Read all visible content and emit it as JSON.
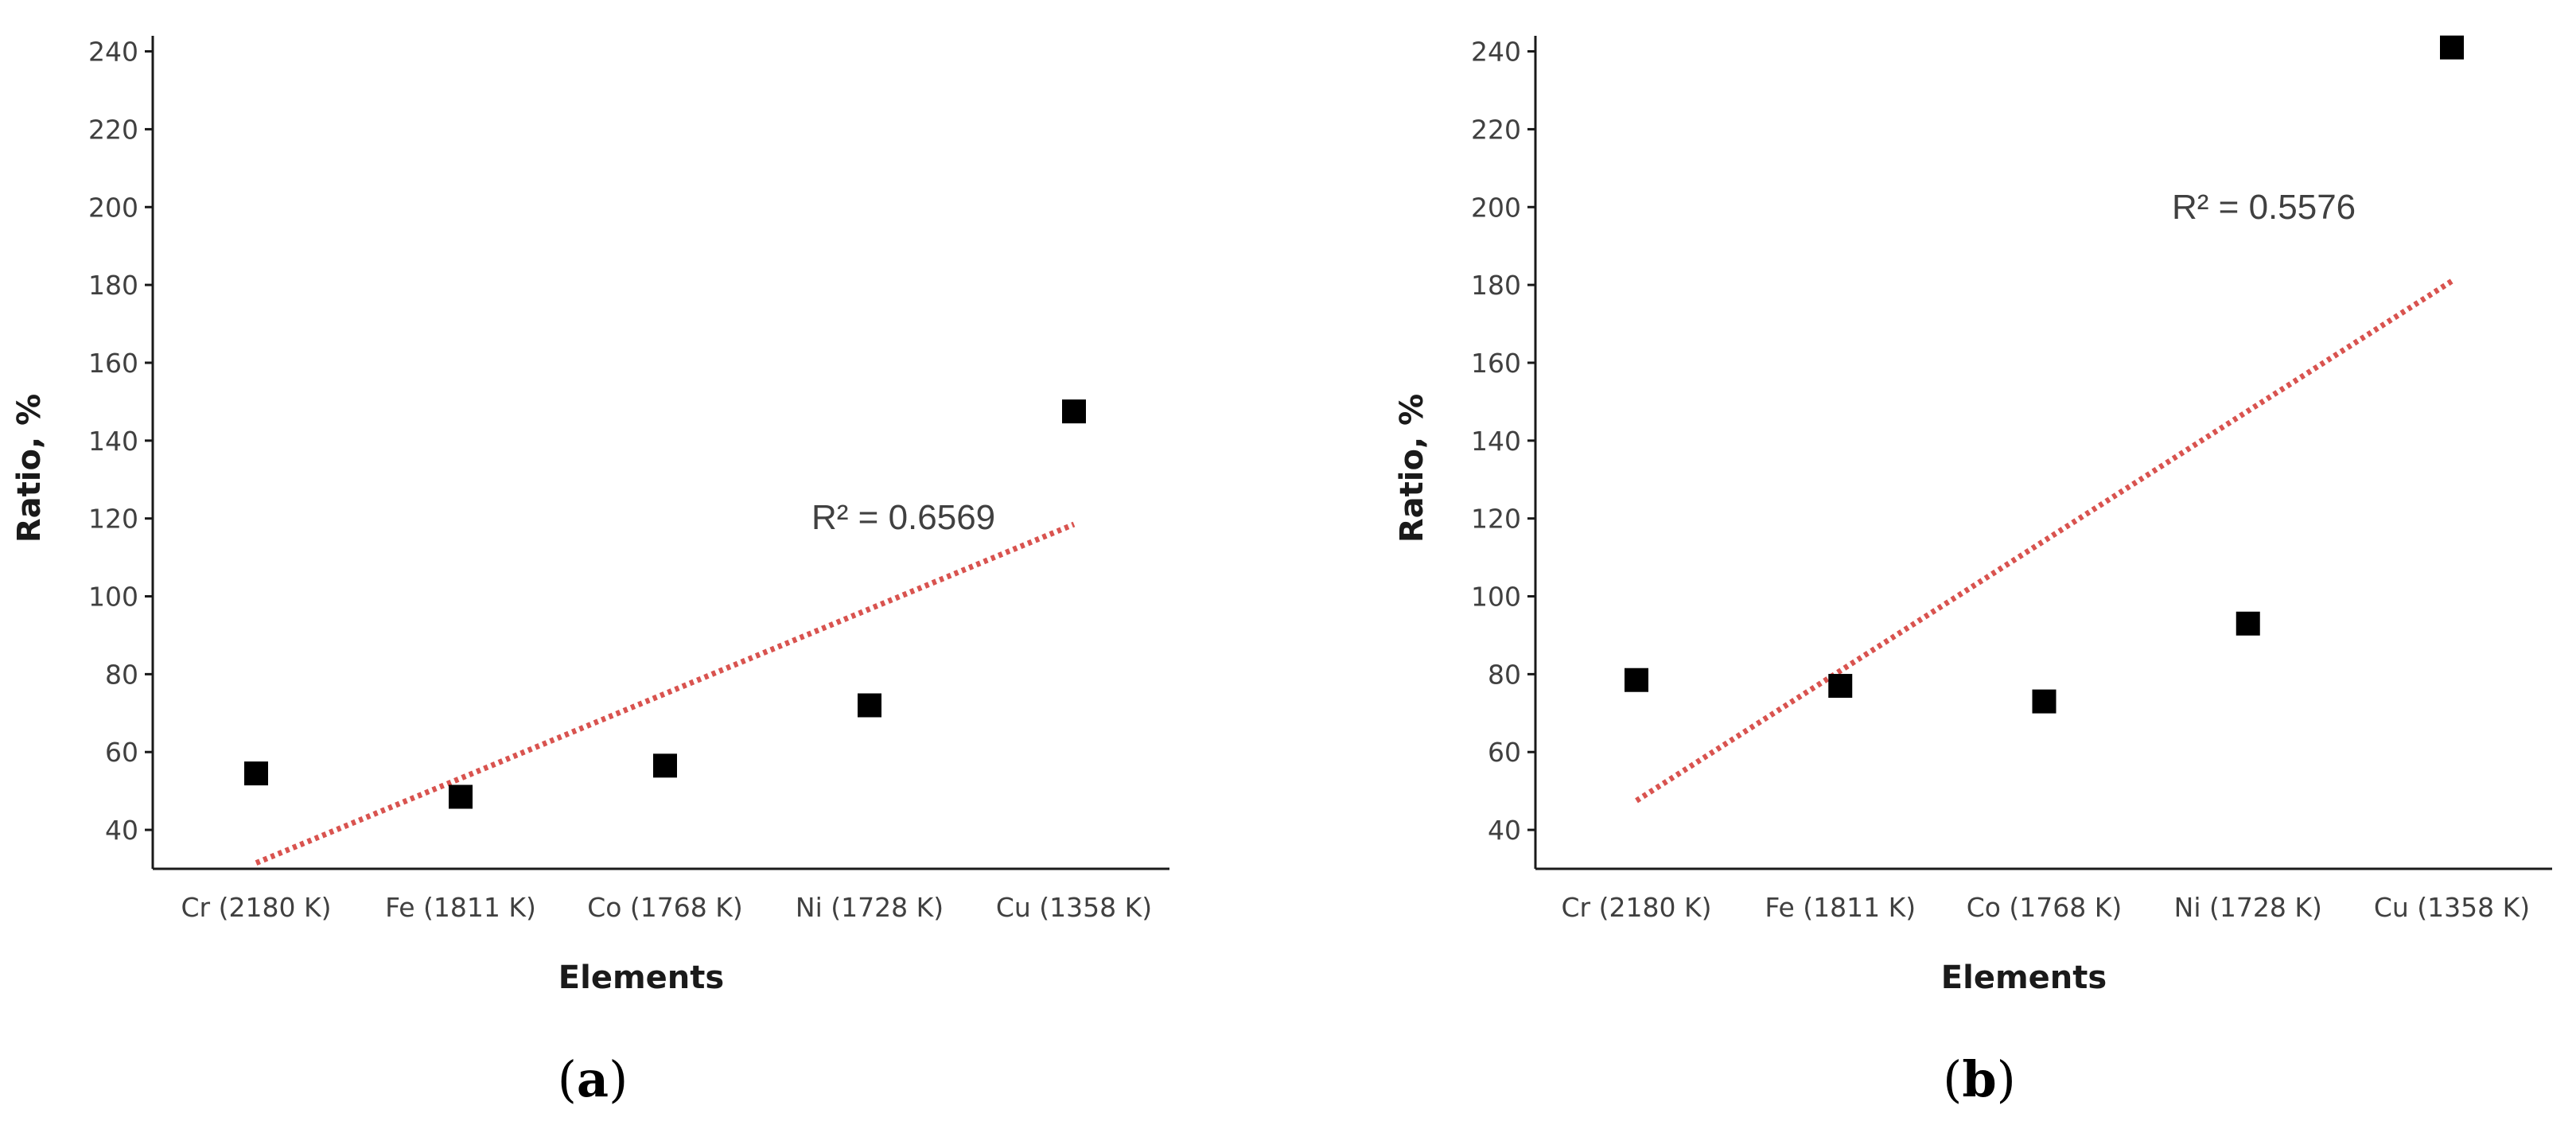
{
  "chart_data": [
    {
      "type": "scatter",
      "panel_label": "a",
      "categories": [
        "Cr (2180 K)",
        "Fe (1811 K)",
        "Co (1768 K)",
        "Ni (1728 K)",
        "Cu (1358 K)"
      ],
      "series": [
        {
          "values": [
            54.5,
            48.5,
            56.5,
            72,
            147.5
          ],
          "marker": "square",
          "color": "#000000"
        }
      ],
      "trendline": {
        "kind": "linear",
        "start": 31.5,
        "end": 118.5,
        "style": "dotted",
        "color": "#d9534f",
        "r2_label": "R² = 0.6569"
      },
      "xlabel": "Elements",
      "ylabel": "Ratio, %",
      "ylim": [
        30,
        244
      ],
      "yticks": [
        40,
        60,
        80,
        100,
        120,
        140,
        160,
        180,
        200,
        220,
        240
      ],
      "grid": false
    },
    {
      "type": "scatter",
      "panel_label": "b",
      "categories": [
        "Cr (2180 K)",
        "Fe (1811 K)",
        "Co (1768 K)",
        "Ni (1728 K)",
        "Cu (1358 K)"
      ],
      "series": [
        {
          "values": [
            78.5,
            77,
            73,
            93,
            241
          ],
          "marker": "square",
          "color": "#000000"
        }
      ],
      "trendline": {
        "kind": "linear",
        "start": 47.5,
        "end": 181,
        "style": "dotted",
        "color": "#d9534f",
        "r2_label": "R² = 0.5576"
      },
      "xlabel": "Elements",
      "ylabel": "Ratio, %",
      "ylim": [
        30,
        244
      ],
      "yticks": [
        40,
        60,
        80,
        100,
        120,
        140,
        160,
        180,
        200,
        220,
        240
      ],
      "grid": false
    }
  ]
}
